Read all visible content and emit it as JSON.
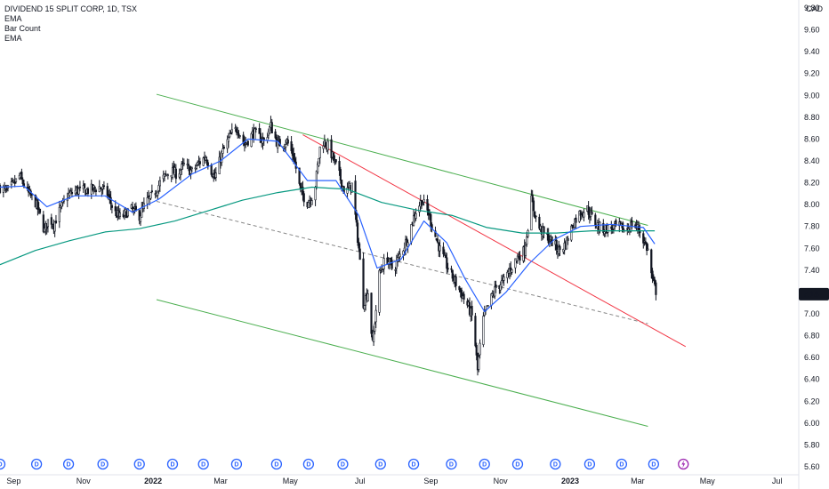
{
  "chart_data": {
    "type": "candlestick",
    "symbol_title": "DIVIDEND 15 SPLIT CORP, 1D, TSX",
    "indicator_labels": [
      "EMA",
      "Bar Count",
      "EMA"
    ],
    "currency": "CAD",
    "last_price": "7.18",
    "y_axis": {
      "ylim": [
        5.6,
        9.8
      ],
      "ticks": [
        "9.80",
        "9.60",
        "9.40",
        "9.20",
        "9.00",
        "8.80",
        "8.60",
        "8.40",
        "8.20",
        "8.00",
        "7.80",
        "7.60",
        "7.40",
        "7.20",
        "7.00",
        "6.80",
        "6.60",
        "6.40",
        "6.20",
        "6.00",
        "5.80",
        "5.60"
      ]
    },
    "x_axis": {
      "range": [
        "2021-08-20",
        "2023-07-20"
      ],
      "ticks": [
        {
          "label": "Sep",
          "date": "2021-09-01",
          "bold": false
        },
        {
          "label": "Nov",
          "date": "2021-11-01",
          "bold": false
        },
        {
          "label": "2022",
          "date": "2022-01-01",
          "bold": true
        },
        {
          "label": "Mar",
          "date": "2022-03-01",
          "bold": false
        },
        {
          "label": "May",
          "date": "2022-05-01",
          "bold": false
        },
        {
          "label": "Jul",
          "date": "2022-07-01",
          "bold": false
        },
        {
          "label": "Sep",
          "date": "2022-09-01",
          "bold": false
        },
        {
          "label": "Nov",
          "date": "2022-11-01",
          "bold": false
        },
        {
          "label": "2023",
          "date": "2023-01-01",
          "bold": true
        },
        {
          "label": "Mar",
          "date": "2023-03-01",
          "bold": false
        },
        {
          "label": "May",
          "date": "2023-05-01",
          "bold": false
        },
        {
          "label": "Jul",
          "date": "2023-07-01",
          "bold": false
        }
      ]
    },
    "price_path": [
      [
        "2021-08-20",
        8.16
      ],
      [
        "2021-08-26",
        8.12
      ],
      [
        "2021-09-02",
        8.2
      ],
      [
        "2021-09-06",
        8.26
      ],
      [
        "2021-09-10",
        8.18
      ],
      [
        "2021-09-14",
        8.1
      ],
      [
        "2021-09-20",
        8.02
      ],
      [
        "2021-09-24",
        7.9
      ],
      [
        "2021-09-28",
        7.76
      ],
      [
        "2021-10-02",
        7.88
      ],
      [
        "2021-10-06",
        7.82
      ],
      [
        "2021-10-12",
        7.96
      ],
      [
        "2021-10-18",
        8.08
      ],
      [
        "2021-10-26",
        8.13
      ],
      [
        "2021-11-05",
        8.13
      ],
      [
        "2021-11-15",
        8.16
      ],
      [
        "2021-11-22",
        8.1
      ],
      [
        "2021-11-28",
        7.93
      ],
      [
        "2021-12-04",
        7.88
      ],
      [
        "2021-12-12",
        7.96
      ],
      [
        "2021-12-20",
        7.9
      ],
      [
        "2021-12-26",
        8.02
      ],
      [
        "2022-01-02",
        8.1
      ],
      [
        "2022-01-08",
        8.22
      ],
      [
        "2022-01-16",
        8.31
      ],
      [
        "2022-01-22",
        8.28
      ],
      [
        "2022-01-28",
        8.36
      ],
      [
        "2022-02-04",
        8.3
      ],
      [
        "2022-02-10",
        8.38
      ],
      [
        "2022-02-16",
        8.44
      ],
      [
        "2022-02-24",
        8.24
      ],
      [
        "2022-03-02",
        8.46
      ],
      [
        "2022-03-10",
        8.64
      ],
      [
        "2022-03-16",
        8.7
      ],
      [
        "2022-03-22",
        8.55
      ],
      [
        "2022-03-30",
        8.66
      ],
      [
        "2022-04-08",
        8.58
      ],
      [
        "2022-04-14",
        8.72
      ],
      [
        "2022-04-20",
        8.55
      ],
      [
        "2022-04-28",
        8.58
      ],
      [
        "2022-05-04",
        8.44
      ],
      [
        "2022-05-10",
        8.12
      ],
      [
        "2022-05-16",
        8.02
      ],
      [
        "2022-05-22",
        8.1
      ],
      [
        "2022-05-28",
        8.6
      ],
      [
        "2022-06-04",
        8.52
      ],
      [
        "2022-06-12",
        8.3
      ],
      [
        "2022-06-18",
        8.1
      ],
      [
        "2022-06-24",
        8.18
      ],
      [
        "2022-06-30",
        7.6
      ],
      [
        "2022-07-04",
        7.1
      ],
      [
        "2022-07-08",
        7.2
      ],
      [
        "2022-07-12",
        6.72
      ],
      [
        "2022-07-18",
        7.36
      ],
      [
        "2022-07-24",
        7.52
      ],
      [
        "2022-07-30",
        7.4
      ],
      [
        "2022-08-06",
        7.56
      ],
      [
        "2022-08-12",
        7.7
      ],
      [
        "2022-08-18",
        7.92
      ],
      [
        "2022-08-24",
        8.04
      ],
      [
        "2022-08-30",
        7.92
      ],
      [
        "2022-09-04",
        7.74
      ],
      [
        "2022-09-10",
        7.56
      ],
      [
        "2022-09-16",
        7.42
      ],
      [
        "2022-09-22",
        7.3
      ],
      [
        "2022-09-28",
        7.18
      ],
      [
        "2022-10-04",
        7.06
      ],
      [
        "2022-10-08",
        6.95
      ],
      [
        "2022-10-12",
        6.48
      ],
      [
        "2022-10-16",
        6.92
      ],
      [
        "2022-10-22",
        7.1
      ],
      [
        "2022-10-28",
        7.24
      ],
      [
        "2022-11-04",
        7.3
      ],
      [
        "2022-11-10",
        7.42
      ],
      [
        "2022-11-16",
        7.52
      ],
      [
        "2022-11-22",
        7.58
      ],
      [
        "2022-11-28",
        8.04
      ],
      [
        "2022-12-04",
        7.8
      ],
      [
        "2022-12-10",
        7.72
      ],
      [
        "2022-12-16",
        7.66
      ],
      [
        "2022-12-22",
        7.58
      ],
      [
        "2022-12-28",
        7.64
      ],
      [
        "2023-01-04",
        7.84
      ],
      [
        "2023-01-10",
        7.93
      ],
      [
        "2023-01-16",
        7.96
      ],
      [
        "2023-01-22",
        7.84
      ],
      [
        "2023-01-28",
        7.78
      ],
      [
        "2023-02-04",
        7.78
      ],
      [
        "2023-02-12",
        7.8
      ],
      [
        "2023-02-18",
        7.76
      ],
      [
        "2023-02-24",
        7.82
      ],
      [
        "2023-03-02",
        7.78
      ],
      [
        "2023-03-06",
        7.68
      ],
      [
        "2023-03-10",
        7.58
      ],
      [
        "2023-03-14",
        7.3
      ],
      [
        "2023-03-18",
        7.18
      ]
    ],
    "ema_blue_path": [
      [
        "2021-08-20",
        8.16
      ],
      [
        "2021-09-10",
        8.17
      ],
      [
        "2021-09-30",
        7.98
      ],
      [
        "2021-10-24",
        8.08
      ],
      [
        "2021-11-20",
        8.08
      ],
      [
        "2021-12-14",
        7.93
      ],
      [
        "2022-01-06",
        8.05
      ],
      [
        "2022-02-04",
        8.28
      ],
      [
        "2022-03-01",
        8.4
      ],
      [
        "2022-03-25",
        8.6
      ],
      [
        "2022-04-20",
        8.58
      ],
      [
        "2022-05-16",
        8.22
      ],
      [
        "2022-06-10",
        8.22
      ],
      [
        "2022-06-30",
        7.9
      ],
      [
        "2022-07-16",
        7.42
      ],
      [
        "2022-08-06",
        7.5
      ],
      [
        "2022-08-26",
        7.85
      ],
      [
        "2022-09-15",
        7.65
      ],
      [
        "2022-10-01",
        7.32
      ],
      [
        "2022-10-18",
        7.02
      ],
      [
        "2022-11-06",
        7.2
      ],
      [
        "2022-11-26",
        7.46
      ],
      [
        "2022-12-18",
        7.68
      ],
      [
        "2023-01-10",
        7.8
      ],
      [
        "2023-02-06",
        7.82
      ],
      [
        "2023-03-06",
        7.79
      ],
      [
        "2023-03-16",
        7.64
      ]
    ],
    "ema_green_path": [
      [
        "2021-08-20",
        7.45
      ],
      [
        "2021-09-20",
        7.58
      ],
      [
        "2021-10-20",
        7.67
      ],
      [
        "2021-11-20",
        7.75
      ],
      [
        "2021-12-20",
        7.78
      ],
      [
        "2022-01-20",
        7.85
      ],
      [
        "2022-02-20",
        7.95
      ],
      [
        "2022-03-20",
        8.04
      ],
      [
        "2022-04-20",
        8.11
      ],
      [
        "2022-05-20",
        8.16
      ],
      [
        "2022-06-20",
        8.14
      ],
      [
        "2022-07-20",
        8.02
      ],
      [
        "2022-08-20",
        7.95
      ],
      [
        "2022-09-20",
        7.9
      ],
      [
        "2022-10-20",
        7.79
      ],
      [
        "2022-11-20",
        7.74
      ],
      [
        "2022-12-20",
        7.74
      ],
      [
        "2023-01-20",
        7.76
      ],
      [
        "2023-02-20",
        7.76
      ],
      [
        "2023-03-16",
        7.76
      ]
    ],
    "trendlines": [
      {
        "name": "channel-upper",
        "color": "#4caf50",
        "dashed": false,
        "from": [
          "2022-01-04",
          9.01
        ],
        "to": [
          "2023-03-10",
          7.81
        ]
      },
      {
        "name": "channel-lower",
        "color": "#4caf50",
        "dashed": false,
        "from": [
          "2022-01-04",
          7.13
        ],
        "to": [
          "2023-03-10",
          5.97
        ]
      },
      {
        "name": "channel-mid",
        "color": "#888888",
        "dashed": true,
        "from": [
          "2022-01-04",
          8.03
        ],
        "to": [
          "2023-03-10",
          6.91
        ]
      },
      {
        "name": "red-downtrend",
        "color": "#f23645",
        "dashed": false,
        "from": [
          "2022-05-12",
          8.64
        ],
        "to": [
          "2023-04-12",
          6.7
        ]
      }
    ],
    "dividend_markers": {
      "label": "D",
      "dates": [
        "2021-08-20",
        "2021-09-21",
        "2021-10-19",
        "2021-11-18",
        "2021-12-20",
        "2022-01-18",
        "2022-02-14",
        "2022-03-15",
        "2022-04-19",
        "2022-05-17",
        "2022-06-16",
        "2022-07-19",
        "2022-08-17",
        "2022-09-19",
        "2022-10-18",
        "2022-11-16",
        "2022-12-19",
        "2023-01-18",
        "2023-02-15",
        "2023-03-15"
      ]
    },
    "event_marker": {
      "date": "2023-04-10",
      "icon": "lightning-icon"
    },
    "colors": {
      "candles": "#131722",
      "ema_blue": "#2962ff",
      "ema_green": "#089981",
      "channel": "#4caf50",
      "downtrend": "#f23645",
      "dividend_badge": "#2962ff",
      "event_badge": "#9c27b0",
      "price_label_bg": "#131722"
    }
  }
}
